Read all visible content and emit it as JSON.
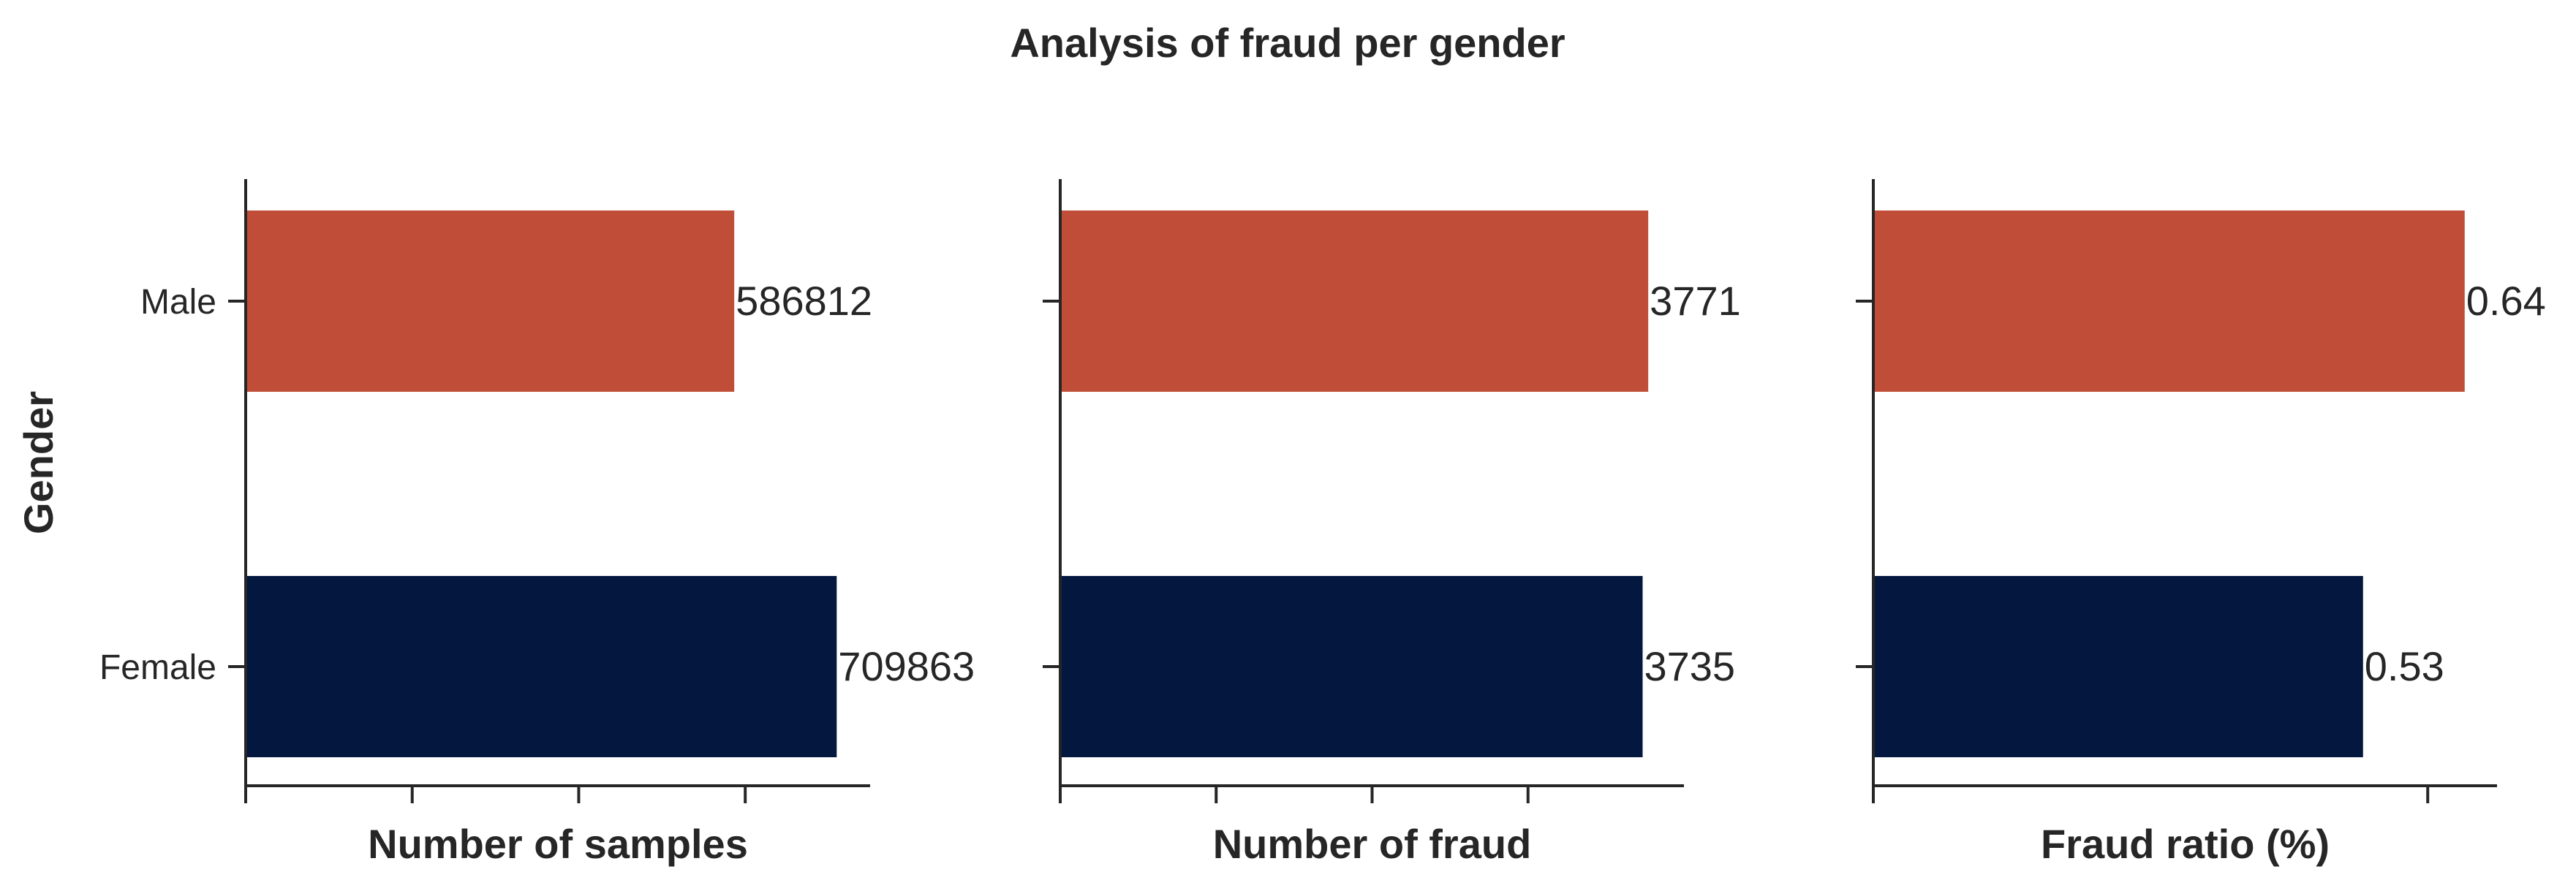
{
  "figure": {
    "title": "Analysis of fraud per gender",
    "ylabel": "Gender",
    "categories": [
      "Male",
      "Female"
    ],
    "colors": {
      "Male": "#C04D37",
      "Female": "#03173F"
    }
  },
  "chart_data": [
    {
      "type": "bar",
      "orientation": "horizontal",
      "categories": [
        "Male",
        "Female"
      ],
      "values": [
        586812,
        709863
      ],
      "data_labels": [
        "586812",
        "709863"
      ],
      "xlabel": "Number of samples",
      "ylabel": "Gender",
      "xlim": [
        0,
        750000
      ],
      "xticks": [
        0,
        200000,
        400000,
        600000
      ],
      "grid": false
    },
    {
      "type": "bar",
      "orientation": "horizontal",
      "categories": [
        "Male",
        "Female"
      ],
      "values": [
        3771,
        3735
      ],
      "data_labels": [
        "3771",
        "3735"
      ],
      "xlabel": "Number of fraud",
      "ylabel": "",
      "xlim": [
        0,
        4000
      ],
      "xticks": [
        0,
        1000,
        2000,
        3000
      ],
      "grid": false
    },
    {
      "type": "bar",
      "orientation": "horizontal",
      "categories": [
        "Male",
        "Female"
      ],
      "values": [
        0.64,
        0.53
      ],
      "data_labels": [
        "0.64",
        "0.53"
      ],
      "xlabel": "Fraud ratio (%)",
      "ylabel": "",
      "xlim": [
        0,
        0.675
      ],
      "xticks": [
        0,
        0.6
      ],
      "grid": false
    }
  ]
}
